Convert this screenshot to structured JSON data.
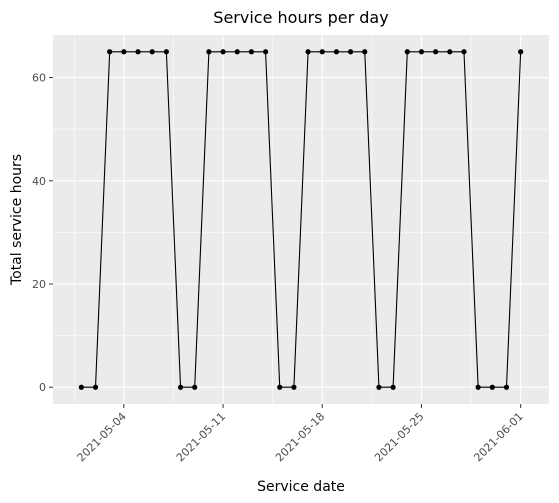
{
  "chart_data": {
    "type": "line",
    "title": "Service hours per day",
    "xlabel": "Service date",
    "ylabel": "Total service hours",
    "x_ticks": [
      "2021-05-04",
      "2021-05-11",
      "2021-05-18",
      "2021-05-25",
      "2021-06-01"
    ],
    "y_ticks": [
      0,
      20,
      40,
      60
    ],
    "xlim": [
      "2021-04-29",
      "2021-06-03"
    ],
    "ylim": [
      -3.25,
      68.25
    ],
    "grid": true,
    "x": [
      "2021-05-01",
      "2021-05-02",
      "2021-05-03",
      "2021-05-04",
      "2021-05-05",
      "2021-05-06",
      "2021-05-07",
      "2021-05-08",
      "2021-05-09",
      "2021-05-10",
      "2021-05-11",
      "2021-05-12",
      "2021-05-13",
      "2021-05-14",
      "2021-05-15",
      "2021-05-16",
      "2021-05-17",
      "2021-05-18",
      "2021-05-19",
      "2021-05-20",
      "2021-05-21",
      "2021-05-22",
      "2021-05-23",
      "2021-05-24",
      "2021-05-25",
      "2021-05-26",
      "2021-05-27",
      "2021-05-28",
      "2021-05-29",
      "2021-05-30",
      "2021-05-31",
      "2021-06-01"
    ],
    "series": [
      {
        "color": "#000000",
        "values": [
          0,
          0,
          65,
          65,
          65,
          65,
          65,
          0,
          0,
          65,
          65,
          65,
          65,
          65,
          0,
          0,
          65,
          65,
          65,
          65,
          65,
          0,
          0,
          65,
          65,
          65,
          65,
          65,
          0,
          0,
          0,
          65
        ]
      }
    ]
  }
}
